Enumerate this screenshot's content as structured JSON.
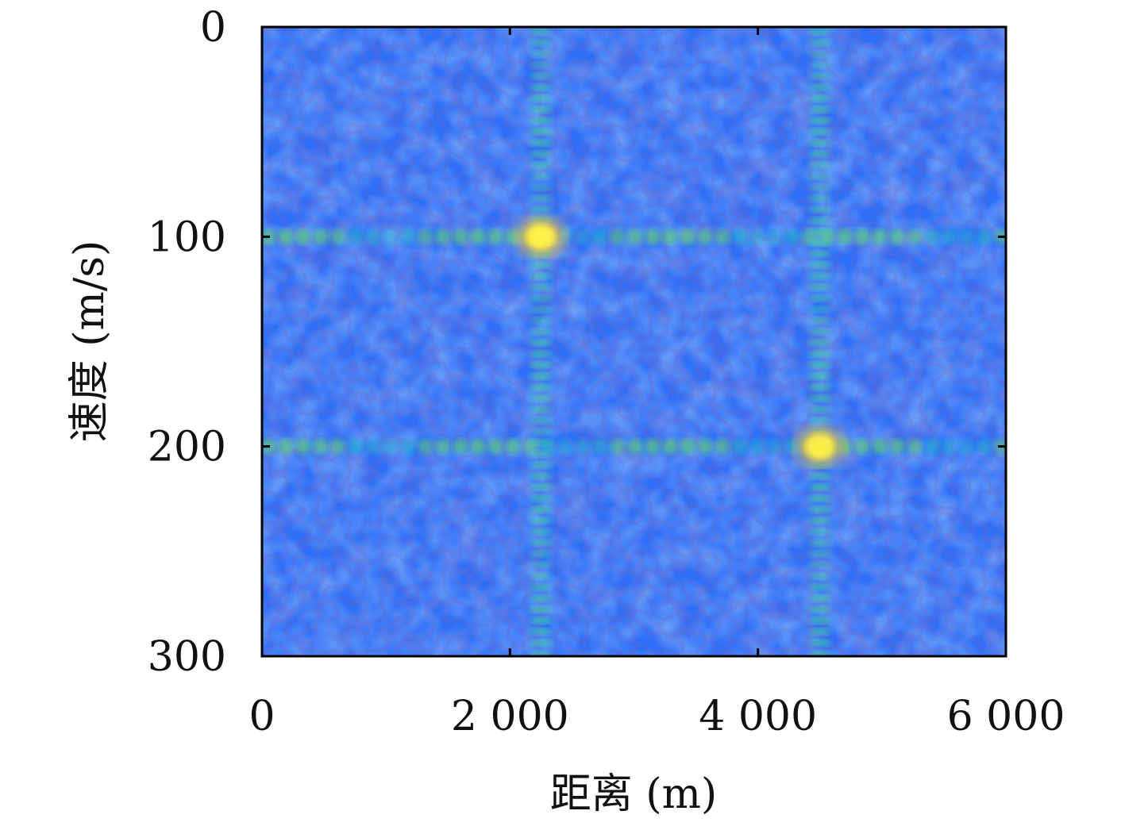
{
  "chart_data": {
    "type": "heatmap",
    "title": "",
    "xlabel": "距离 (m)",
    "ylabel": "速度 (m/s)",
    "xlim": [
      0,
      6000
    ],
    "ylim": [
      0,
      300
    ],
    "y_inverted": true,
    "xticks": [
      0,
      2000,
      4000,
      6000
    ],
    "xtick_labels": [
      "0",
      "2 000",
      "4 000",
      "6 000"
    ],
    "yticks": [
      0,
      100,
      200,
      300
    ],
    "ytick_labels": [
      "0",
      "100",
      "200",
      "300"
    ],
    "colormap": "parula",
    "peaks": [
      {
        "range": 2250,
        "velocity": 100,
        "intensity": 1.0
      },
      {
        "range": 4500,
        "velocity": 200,
        "intensity": 0.95
      }
    ],
    "sidelobe_rows": [
      100,
      200
    ],
    "sidelobe_columns": [
      2250,
      4500
    ],
    "background_level": 0.28,
    "grid": false,
    "legend": "none"
  }
}
